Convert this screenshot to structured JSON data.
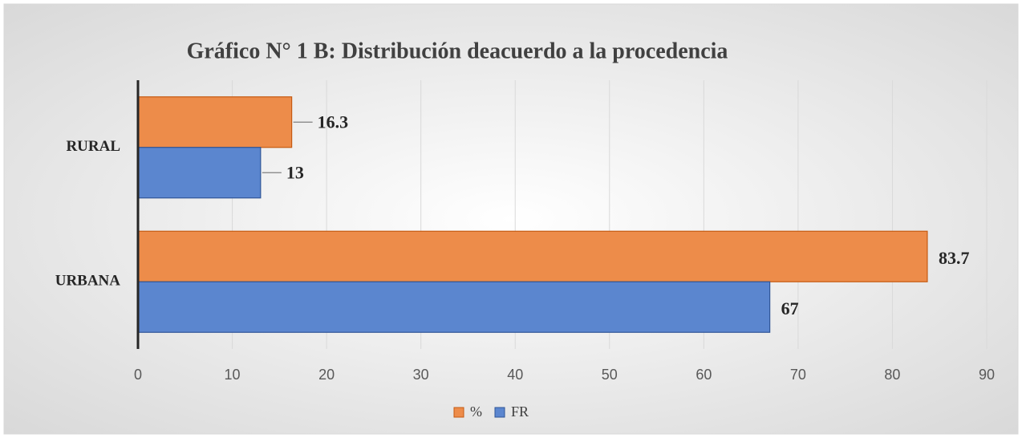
{
  "chart_data": {
    "type": "hbar",
    "title": "Gráfico N° 1 B: Distribución deacuerdo a la procedencia",
    "categories": [
      "RURAL",
      "URBANA"
    ],
    "series": [
      {
        "name": "%",
        "color": "#ed8c4a",
        "values": [
          16.3,
          83.7
        ]
      },
      {
        "name": "FR",
        "color": "#5b86cf",
        "values": [
          13,
          67
        ]
      }
    ],
    "xlim": [
      0,
      90
    ],
    "xticks": [
      0,
      10,
      20,
      30,
      40,
      50,
      60,
      70,
      80,
      90
    ],
    "grid": true,
    "legend": "bottom"
  }
}
